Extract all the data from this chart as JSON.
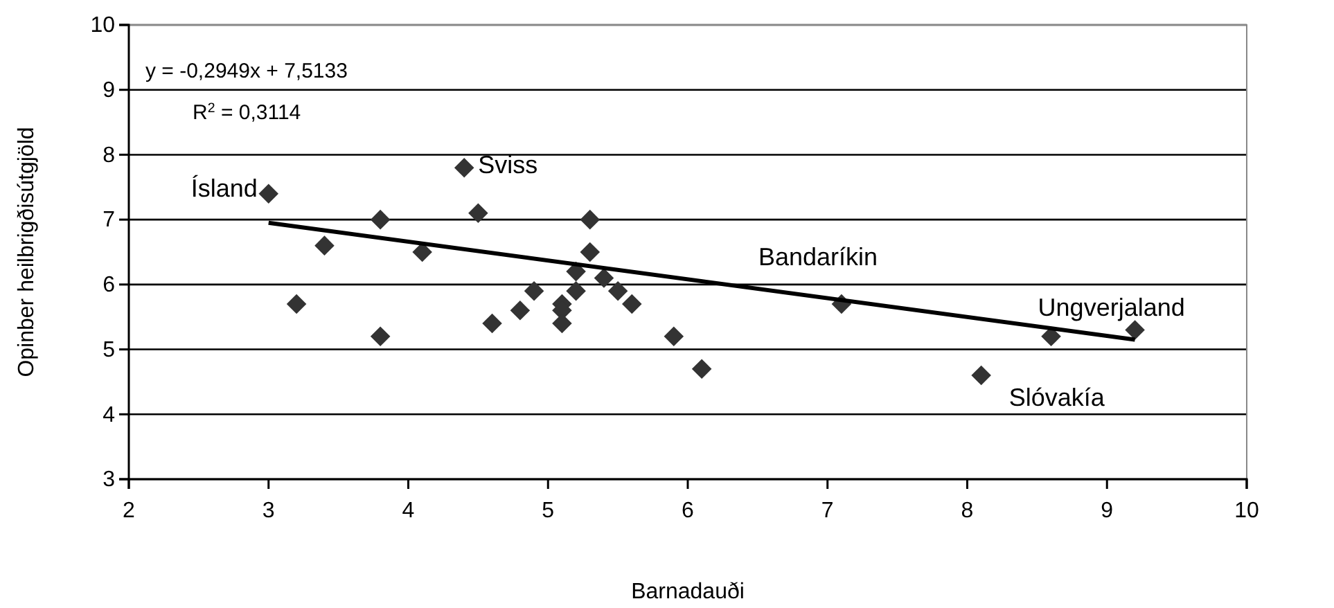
{
  "chart_data": {
    "type": "scatter",
    "xlabel": "Barnadauði",
    "ylabel": "Opinber heilbrigðisútgjöld",
    "xlim": [
      2,
      10
    ],
    "ylim": [
      3,
      10
    ],
    "xticks": [
      2,
      3,
      4,
      5,
      6,
      7,
      8,
      9,
      10
    ],
    "yticks": [
      3,
      4,
      5,
      6,
      7,
      8,
      9,
      10
    ],
    "grid": "y",
    "series": [
      {
        "marker": "diamond",
        "color": "#333333",
        "x": [
          3.0,
          3.2,
          3.4,
          3.8,
          3.8,
          4.1,
          4.4,
          4.5,
          4.6,
          4.8,
          4.9,
          5.1,
          5.1,
          5.1,
          5.2,
          5.2,
          5.3,
          5.3,
          5.4,
          5.5,
          5.6,
          5.9,
          6.1,
          7.1,
          8.1,
          8.6,
          9.2
        ],
        "values": [
          7.4,
          5.7,
          6.6,
          7.0,
          5.2,
          6.5,
          7.8,
          7.1,
          5.4,
          5.6,
          5.9,
          5.7,
          5.6,
          5.4,
          5.9,
          6.2,
          7.0,
          6.5,
          6.1,
          5.9,
          5.7,
          5.2,
          4.7,
          5.7,
          4.6,
          5.2,
          5.3
        ]
      },
      {
        "type": "line",
        "marker": "none",
        "color": "#000000",
        "x": [
          3.0,
          9.2
        ],
        "values": [
          6.95,
          5.15
        ]
      }
    ],
    "annotations": [
      "y = -0,2949x + 7,5133",
      "R$^{2}$ = 0,3114",
      {
        "text": "Ísland",
        "x": 3.0,
        "y": 7.4
      },
      {
        "text": "Sviss",
        "x": 4.4,
        "y": 7.8
      },
      {
        "text": "Bandaríkin",
        "x": 7.1,
        "y": 5.7
      },
      {
        "text": "Ungverjaland",
        "x": 9.2,
        "y": 5.3
      },
      {
        "text": "Slóvakía",
        "x": 8.1,
        "y": 4.6
      }
    ]
  }
}
